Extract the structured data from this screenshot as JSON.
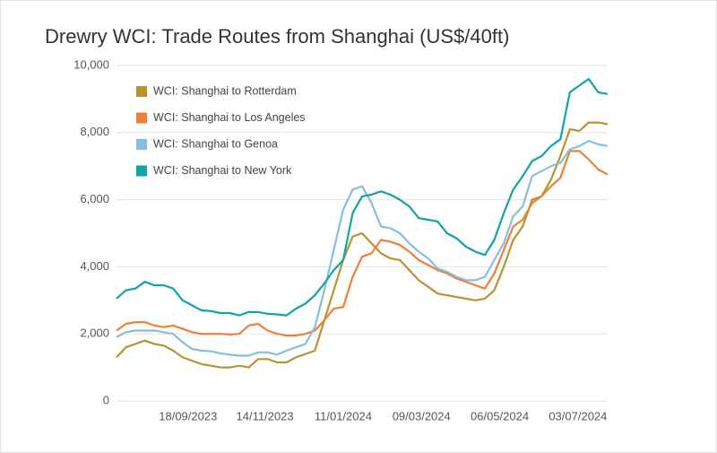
{
  "chart_data": {
    "type": "line",
    "title": "Drewry WCI: Trade Routes from Shanghai (US$/40ft)",
    "x": [
      "27/07/2023",
      "03/08/2023",
      "10/08/2023",
      "17/08/2023",
      "24/08/2023",
      "31/08/2023",
      "07/09/2023",
      "14/09/2023",
      "21/09/2023",
      "28/09/2023",
      "05/10/2023",
      "12/10/2023",
      "19/10/2023",
      "26/10/2023",
      "02/11/2023",
      "09/11/2023",
      "16/11/2023",
      "23/11/2023",
      "30/11/2023",
      "07/12/2023",
      "14/12/2023",
      "21/12/2023",
      "28/12/2023",
      "04/01/2024",
      "11/01/2024",
      "18/01/2024",
      "25/01/2024",
      "01/02/2024",
      "08/02/2024",
      "15/02/2024",
      "22/02/2024",
      "29/02/2024",
      "07/03/2024",
      "14/03/2024",
      "21/03/2024",
      "28/03/2024",
      "04/04/2024",
      "11/04/2024",
      "18/04/2024",
      "25/04/2024",
      "02/05/2024",
      "09/05/2024",
      "16/05/2024",
      "23/05/2024",
      "30/05/2024",
      "06/06/2024",
      "13/06/2024",
      "20/06/2024",
      "27/06/2024",
      "04/07/2024",
      "11/07/2024",
      "18/07/2024",
      "25/07/2024"
    ],
    "series": [
      {
        "name": "WCI: Shanghai to Rotterdam",
        "color": "#b8932f",
        "values": [
          1300,
          1600,
          1700,
          1800,
          1700,
          1650,
          1500,
          1300,
          1200,
          1100,
          1050,
          1000,
          1000,
          1050,
          1000,
          1250,
          1250,
          1150,
          1150,
          1300,
          1400,
          1500,
          2400,
          3300,
          4200,
          4900,
          5000,
          4700,
          4400,
          4250,
          4200,
          3900,
          3600,
          3400,
          3200,
          3150,
          3100,
          3050,
          3000,
          3050,
          3300,
          4000,
          4800,
          5200,
          6000,
          6100,
          6600,
          7300,
          8100,
          8050,
          8300,
          8300,
          8250
        ]
      },
      {
        "name": "WCI: Shanghai to Los Angeles",
        "color": "#f07f35",
        "values": [
          2100,
          2300,
          2350,
          2350,
          2250,
          2200,
          2250,
          2150,
          2050,
          2000,
          2000,
          2000,
          1980,
          2000,
          2250,
          2300,
          2100,
          2000,
          1950,
          1950,
          2000,
          2100,
          2400,
          2750,
          2800,
          3700,
          4300,
          4400,
          4800,
          4750,
          4650,
          4450,
          4200,
          4050,
          3900,
          3800,
          3650,
          3550,
          3450,
          3350,
          3800,
          4500,
          5200,
          5400,
          5900,
          6100,
          6400,
          6650,
          7450,
          7450,
          7200,
          6900,
          6750
        ]
      },
      {
        "name": "WCI: Shanghai to Genoa",
        "color": "#88bde2",
        "values": [
          1900,
          2050,
          2100,
          2100,
          2100,
          2050,
          2000,
          1750,
          1550,
          1500,
          1480,
          1420,
          1380,
          1350,
          1350,
          1450,
          1450,
          1380,
          1500,
          1600,
          1700,
          2200,
          3300,
          4500,
          5700,
          6300,
          6400,
          5900,
          5200,
          5150,
          5000,
          4700,
          4450,
          4250,
          3950,
          3850,
          3700,
          3600,
          3600,
          3700,
          4200,
          4700,
          5500,
          5800,
          6700,
          6850,
          7000,
          7100,
          7500,
          7600,
          7750,
          7650,
          7600
        ]
      },
      {
        "name": "WCI: Shanghai to New York",
        "color": "#12a3a3",
        "values": [
          3050,
          3300,
          3350,
          3550,
          3450,
          3450,
          3350,
          3000,
          2850,
          2700,
          2680,
          2620,
          2620,
          2550,
          2650,
          2650,
          2600,
          2580,
          2550,
          2750,
          2900,
          3150,
          3500,
          3900,
          4200,
          5600,
          6100,
          6150,
          6250,
          6150,
          6000,
          5800,
          5450,
          5400,
          5350,
          5000,
          4850,
          4600,
          4450,
          4350,
          4800,
          5600,
          6300,
          6700,
          7150,
          7300,
          7600,
          7800,
          9200,
          9400,
          9600,
          9200,
          9150
        ]
      }
    ],
    "xlim": [
      "27/07/2023",
      "25/07/2024"
    ],
    "xticks": [
      "18/09/2023",
      "14/11/2023",
      "11/01/2024",
      "09/03/2024",
      "06/05/2024",
      "03/07/2024"
    ],
    "ylim": [
      0,
      10000
    ],
    "yticks": [
      0,
      {
        "value": 2000,
        "label": "2,000"
      },
      {
        "value": 4000,
        "label": "4,000"
      },
      {
        "value": 6000,
        "label": "6,000"
      },
      {
        "value": 8000,
        "label": "8,000"
      },
      {
        "value": 10000,
        "label": "10,000"
      }
    ],
    "grid": true,
    "legend": "top-left"
  }
}
